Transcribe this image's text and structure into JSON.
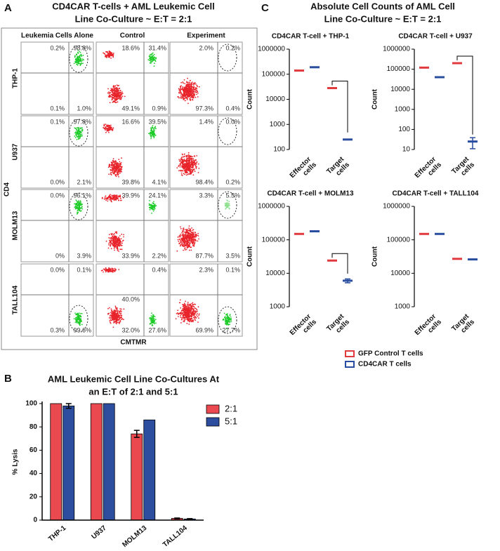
{
  "panel_a": {
    "label": "A",
    "title": [
      "CD4CAR T-cells + AML Leukemic Cell",
      "Line  Co-Culture ~ E:T = 2:1"
    ],
    "columns": [
      "Leukemia Cells Alone",
      "Control",
      "Experiment"
    ],
    "rows": [
      {
        "name": "THP-1",
        "plots": [
          [
            "0.2%",
            "98.8%",
            "0.1%",
            "1.0%"
          ],
          [
            "18.6%",
            "31.4%",
            "49.1%",
            "0.9%"
          ],
          [
            "2.0%",
            "0.2%",
            "97.3%",
            "0.4%"
          ]
        ]
      },
      {
        "name": "U937",
        "plots": [
          [
            "0.1%",
            "97.8%",
            "0.0%",
            "2.1%"
          ],
          [
            "16.6%",
            "39.5%",
            "39.8%",
            "4.1%"
          ],
          [
            "1.4%",
            "0.0%",
            "98.4%",
            "0.2%"
          ]
        ]
      },
      {
        "name": "MOLM13",
        "plots": [
          [
            "0.0%",
            "96.1%",
            "0%",
            "3.9%"
          ],
          [
            "39.9%",
            "24.1%",
            "33.9%",
            "2.2%"
          ],
          [
            "3.3%",
            "5.5%",
            "87.7%",
            "3.5%"
          ]
        ]
      },
      {
        "name": "TALL104",
        "plots": [
          [
            "0.0%",
            "0.1%",
            "0.3%",
            "99.6%"
          ],
          [
            "40.0%",
            "0.4%",
            "32.0%",
            "27.6%"
          ],
          [
            "2.3%",
            "0.1%",
            "69.9%",
            "27.7%"
          ]
        ]
      }
    ],
    "y_label": "CD4",
    "x_label": "CMTMR"
  },
  "panel_b": {
    "label": "B"
  },
  "panel_c": {
    "label": "C",
    "title": [
      "Absolute Cell Counts of AML Cell",
      "Line  Co-Culture ~ E:T = 2:1"
    ],
    "legend": [
      {
        "name": "GFP Control T cells",
        "color": "#e03a3e"
      },
      {
        "name": "CD4CAR T cells",
        "color": "#2a4e9f"
      }
    ]
  },
  "chart_data": [
    {
      "type": "bar",
      "title": [
        "AML Leukemic Cell Line Co-Cultures  At",
        "an E:T of 2:1 and 5:1"
      ],
      "y_label": "% Lysis",
      "categories": [
        "THP-1",
        "U937",
        "MOLM13",
        "TALL104"
      ],
      "series": [
        {
          "name": "2:1",
          "color": "#ea4a4f",
          "values": [
            100,
            100,
            74,
            1.5
          ],
          "errors": [
            0,
            0,
            3,
            0.3
          ]
        },
        {
          "name": "5:1",
          "color": "#2d4e9e",
          "values": [
            98,
            100,
            86,
            1
          ],
          "errors": [
            2,
            0,
            0,
            0.3
          ]
        }
      ],
      "ylim": [
        0,
        100
      ],
      "yticks": [
        0,
        20,
        40,
        60,
        80,
        100
      ],
      "legend": "upper right"
    },
    {
      "type": "dot",
      "log_scale": true,
      "title": "CD4CAR T-cell + THP-1",
      "y_label": "Count",
      "categories": [
        "Effector cells",
        "Target cells"
      ],
      "series": [
        {
          "color": "#e03a3e",
          "values": [
            140000,
            28000
          ]
        },
        {
          "color": "#2a4e9f",
          "values": [
            190000,
            250
          ]
        }
      ],
      "ylim": [
        100,
        1000000
      ],
      "yticks": [
        100,
        1000,
        10000,
        100000,
        1000000
      ],
      "bracket": true
    },
    {
      "type": "dot",
      "log_scale": true,
      "title": "CD4CAR T-cell + U937",
      "y_label": "Count",
      "categories": [
        "Effector cells",
        "Target cells"
      ],
      "series": [
        {
          "color": "#e03a3e",
          "values": [
            120000,
            200000
          ]
        },
        {
          "color": "#2a4e9f",
          "values": [
            40000,
            25
          ],
          "errors": [
            0,
            14
          ]
        }
      ],
      "ylim": [
        10,
        1000000
      ],
      "yticks": [
        10,
        100,
        1000,
        10000,
        100000,
        1000000
      ],
      "bracket": true
    },
    {
      "type": "dot",
      "log_scale": true,
      "title": "CD4CAR T-cell + MOLM13",
      "y_label": "Count",
      "categories": [
        "Effector cells",
        "Target cells"
      ],
      "series": [
        {
          "color": "#e03a3e",
          "values": [
            150000,
            24000
          ]
        },
        {
          "color": "#2a4e9f",
          "values": [
            180000,
            6000
          ],
          "errors": [
            0,
            800
          ]
        }
      ],
      "ylim": [
        1000,
        1000000
      ],
      "yticks": [
        1000,
        10000,
        100000,
        1000000
      ],
      "bracket": true
    },
    {
      "type": "dot",
      "log_scale": true,
      "title": "CD4CAR T-cell + TALL104",
      "y_label": "Count",
      "categories": [
        "Effector cells",
        "Target cells"
      ],
      "series": [
        {
          "color": "#e03a3e",
          "values": [
            150000,
            27000
          ]
        },
        {
          "color": "#2a4e9f",
          "values": [
            150000,
            26000
          ]
        }
      ],
      "ylim": [
        1000,
        1000000
      ],
      "yticks": [
        1000,
        10000,
        100000,
        1000000
      ],
      "bracket": false
    }
  ]
}
